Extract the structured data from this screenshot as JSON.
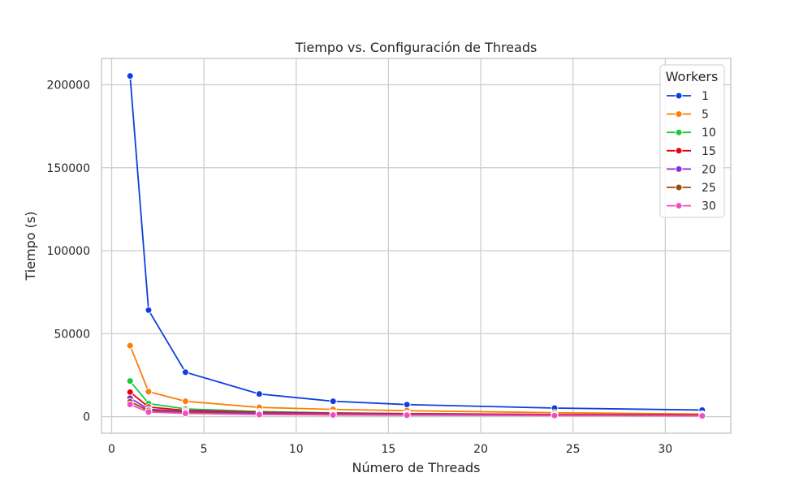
{
  "chart_data": {
    "type": "line",
    "title": "Tiempo vs. Configuración de Threads",
    "xlabel": "Número de Threads",
    "ylabel": "Tiempo (s)",
    "xlim": [
      -0.55,
      33.55
    ],
    "ylim": [
      -9960,
      215900
    ],
    "xticks": [
      0,
      5,
      10,
      15,
      20,
      25,
      30
    ],
    "xtick_labels": [
      "0",
      "5",
      "10",
      "15",
      "20",
      "25",
      "30"
    ],
    "yticks": [
      0,
      50000,
      100000,
      150000,
      200000
    ],
    "ytick_labels": [
      "0",
      "50000",
      "100000",
      "150000",
      "200000"
    ],
    "grid": true,
    "legend": {
      "title": "Workers",
      "placement": "top-right"
    },
    "x": [
      1,
      2,
      4,
      8,
      12,
      16,
      24,
      32
    ],
    "series": [
      {
        "name": "1",
        "color": "#0b3fe0",
        "values": [
          205300,
          64200,
          26800,
          13700,
          9300,
          7300,
          5200,
          4000
        ]
      },
      {
        "name": "5",
        "color": "#ff7c05",
        "values": [
          42800,
          15100,
          9300,
          5600,
          4400,
          3600,
          2400,
          1600
        ]
      },
      {
        "name": "10",
        "color": "#1ac938",
        "values": [
          21500,
          7900,
          4700,
          3100,
          2300,
          1900,
          1300,
          1000
        ]
      },
      {
        "name": "15",
        "color": "#e8000b",
        "values": [
          14800,
          5800,
          3800,
          2600,
          2100,
          1800,
          1300,
          1100
        ]
      },
      {
        "name": "20",
        "color": "#8b2be2",
        "values": [
          11200,
          4500,
          3100,
          2200,
          1800,
          1500,
          1100,
          800
        ]
      },
      {
        "name": "25",
        "color": "#9f4800",
        "values": [
          9000,
          3700,
          2500,
          1700,
          1400,
          1200,
          900,
          700
        ]
      },
      {
        "name": "30",
        "color": "#f14cc1",
        "values": [
          7400,
          2800,
          2000,
          1300,
          1000,
          900,
          700,
          500
        ]
      }
    ]
  }
}
